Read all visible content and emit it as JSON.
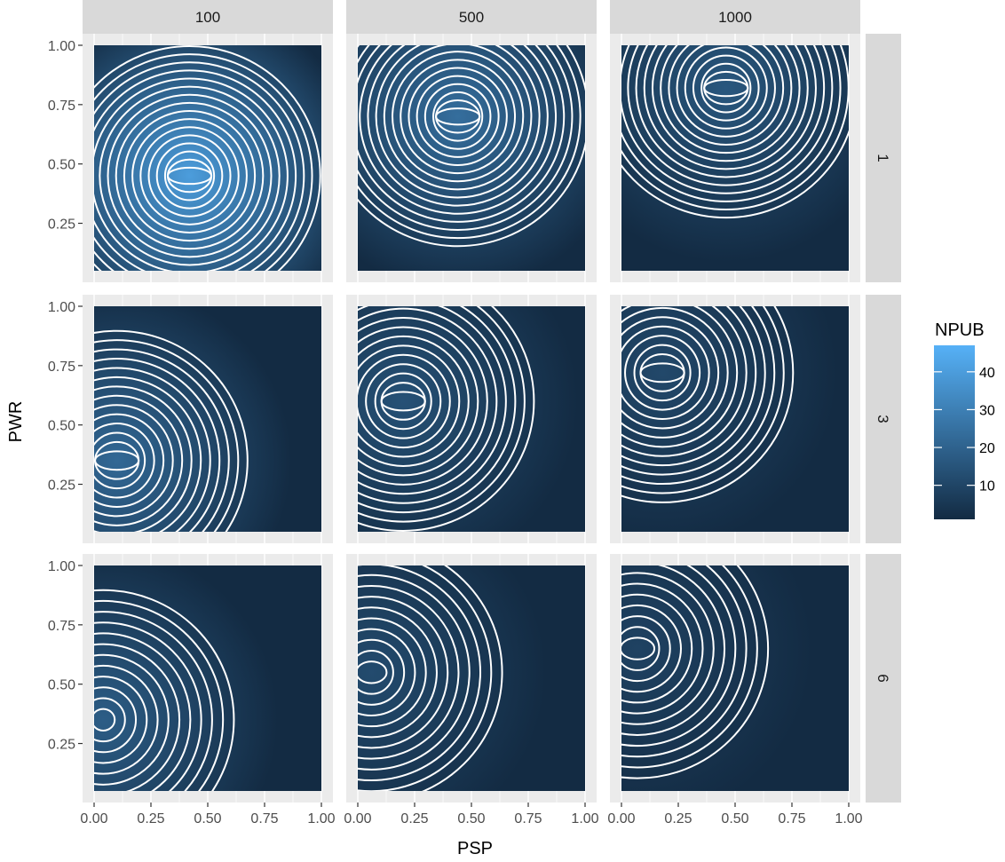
{
  "chart_data": {
    "type": "heatmap",
    "facet_cols": [
      "100",
      "500",
      "1000"
    ],
    "facet_rows": [
      "1",
      "3",
      "6"
    ],
    "xlabel": "PSP",
    "ylabel": "PWR",
    "xlim": [
      0,
      1
    ],
    "ylim": [
      0.05,
      1
    ],
    "x_ticks": [
      0,
      0.25,
      0.5,
      0.75,
      1
    ],
    "x_tick_labels": [
      "0.00",
      "0.25",
      "0.50",
      "0.75",
      "1.00"
    ],
    "y_ticks": [
      0.25,
      0.5,
      0.75,
      1
    ],
    "y_tick_labels": [
      "0.25",
      "0.50",
      "0.75",
      "1.00"
    ],
    "contour_color": "#ffffff",
    "legend": {
      "title": "NPUB",
      "placement": "right",
      "range": [
        1,
        47
      ],
      "ticks": [
        10,
        20,
        30,
        40
      ],
      "tick_labels": [
        "10",
        "20",
        "30",
        "40"
      ],
      "low_color": "#132B43",
      "high_color": "#56B1F7"
    },
    "panels": [
      {
        "col": "100",
        "row": "1",
        "peak": [
          0.42,
          0.45
        ],
        "max_value": 40,
        "contour_levels": 16,
        "grid_lines": true
      },
      {
        "col": "500",
        "row": "1",
        "peak": [
          0.44,
          0.7
        ],
        "max_value": 24,
        "contour_levels": 16,
        "grid_lines": true
      },
      {
        "col": "1000",
        "row": "1",
        "peak": [
          0.46,
          0.82
        ],
        "max_value": 16,
        "contour_levels": 16,
        "grid_lines": true
      },
      {
        "col": "100",
        "row": "3",
        "peak": [
          0.1,
          0.35
        ],
        "max_value": 22,
        "contour_levels": 14,
        "grid_lines": true
      },
      {
        "col": "500",
        "row": "3",
        "peak": [
          0.2,
          0.6
        ],
        "max_value": 14,
        "contour_levels": 14,
        "grid_lines": true
      },
      {
        "col": "1000",
        "row": "3",
        "peak": [
          0.18,
          0.72
        ],
        "max_value": 11,
        "contour_levels": 14,
        "grid_lines": true
      },
      {
        "col": "100",
        "row": "6",
        "peak": [
          0.04,
          0.35
        ],
        "max_value": 18,
        "contour_levels": 12,
        "grid_lines": true
      },
      {
        "col": "500",
        "row": "6",
        "peak": [
          0.06,
          0.55
        ],
        "max_value": 12,
        "contour_levels": 12,
        "grid_lines": true
      },
      {
        "col": "1000",
        "row": "6",
        "peak": [
          0.07,
          0.65
        ],
        "max_value": 9,
        "contour_levels": 12,
        "grid_lines": true
      }
    ]
  }
}
